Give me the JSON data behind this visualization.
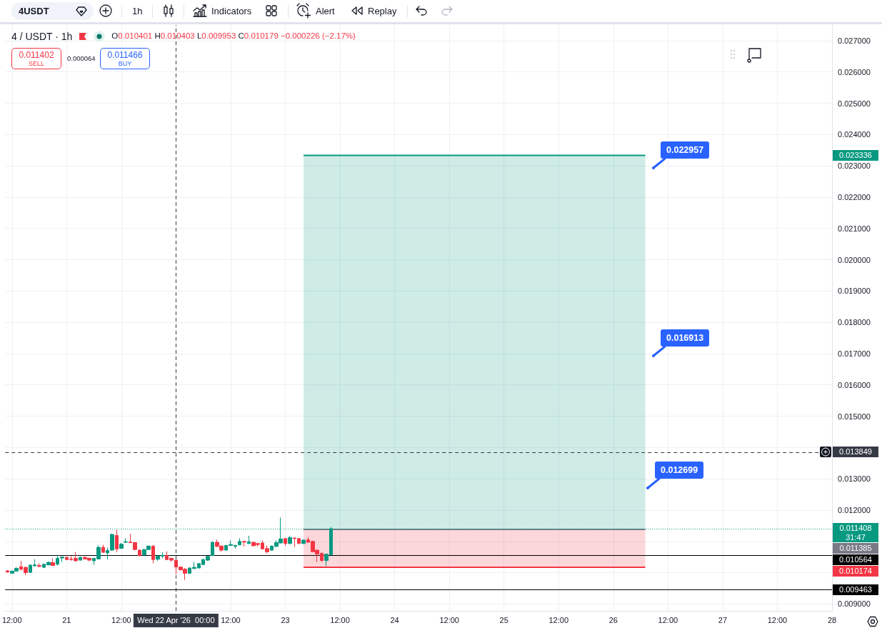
{
  "chart_data": {
    "type": "candlestick",
    "title": "4 / USDT · 1h",
    "annotations": [
      "4USDT",
      "1h",
      "Indicators",
      "Alert",
      "Replay",
      "O0.010401 H0.010403 L0.009953 C0.010179 −0.000226 (−2.17%)",
      "0.011402",
      "SELL",
      "0.000064",
      "0.011466",
      "BUY",
      "0.022957",
      "0.016913",
      "0.012699",
      "31:47",
      "0.023336",
      "0.011385",
      "0.010174"
    ],
    "x": [
      "2026-04-20T11:00",
      "2026-04-20T12:00",
      "2026-04-20T13:00",
      "2026-04-20T14:00",
      "2026-04-20T15:00",
      "2026-04-20T16:00",
      "2026-04-20T17:00",
      "2026-04-20T18:00",
      "2026-04-20T19:00",
      "2026-04-20T20:00",
      "2026-04-20T21:00",
      "2026-04-20T22:00",
      "2026-04-20T23:00",
      "2026-04-21T00:00",
      "2026-04-21T01:00",
      "2026-04-21T02:00",
      "2026-04-21T03:00",
      "2026-04-21T04:00",
      "2026-04-21T05:00",
      "2026-04-21T06:00",
      "2026-04-21T07:00",
      "2026-04-21T08:00",
      "2026-04-21T09:00",
      "2026-04-21T10:00",
      "2026-04-21T11:00",
      "2026-04-21T12:00",
      "2026-04-21T13:00",
      "2026-04-21T14:00",
      "2026-04-21T15:00",
      "2026-04-21T16:00",
      "2026-04-21T17:00",
      "2026-04-21T18:00",
      "2026-04-21T19:00",
      "2026-04-21T20:00",
      "2026-04-21T21:00",
      "2026-04-21T22:00",
      "2026-04-21T23:00",
      "2026-04-22T00:00",
      "2026-04-22T01:00",
      "2026-04-22T02:00",
      "2026-04-22T03:00",
      "2026-04-22T04:00",
      "2026-04-22T05:00",
      "2026-04-22T06:00",
      "2026-04-22T07:00",
      "2026-04-22T08:00",
      "2026-04-22T09:00",
      "2026-04-22T10:00",
      "2026-04-22T11:00",
      "2026-04-22T12:00",
      "2026-04-22T13:00",
      "2026-04-22T14:00",
      "2026-04-22T15:00",
      "2026-04-22T16:00",
      "2026-04-22T17:00",
      "2026-04-22T18:00",
      "2026-04-22T19:00",
      "2026-04-22T20:00",
      "2026-04-22T21:00",
      "2026-04-22T22:00",
      "2026-04-22T23:00",
      "2026-04-23T00:00",
      "2026-04-23T01:00",
      "2026-04-23T02:00",
      "2026-04-23T03:00",
      "2026-04-23T04:00",
      "2026-04-23T05:00",
      "2026-04-23T06:00",
      "2026-04-23T07:00",
      "2026-04-23T08:00",
      "2026-04-23T09:00",
      "2026-04-23T10:00"
    ],
    "ohlc": [
      [
        0.01006,
        0.01008,
        0.01,
        0.01002
      ],
      [
        0.00998,
        0.01007,
        0.00996,
        0.01005
      ],
      [
        0.01005,
        0.01017,
        0.01004,
        0.01014
      ],
      [
        0.01019,
        0.01038,
        0.01007,
        0.01011
      ],
      [
        0.01017,
        0.01019,
        0.00992,
        0.01
      ],
      [
        0.01001,
        0.01027,
        0.01,
        0.01024
      ],
      [
        0.01022,
        0.01043,
        0.01019,
        0.01025
      ],
      [
        0.01023,
        0.0103,
        0.01017,
        0.0102
      ],
      [
        0.01017,
        0.01029,
        0.01015,
        0.01027
      ],
      [
        0.01025,
        0.01036,
        0.01023,
        0.01033
      ],
      [
        0.01032,
        0.01046,
        0.01022,
        0.01023
      ],
      [
        0.01027,
        0.01057,
        0.01023,
        0.01046
      ],
      [
        0.01047,
        0.01052,
        0.01034,
        0.0105
      ],
      [
        0.01049,
        0.01051,
        0.0104,
        0.01042
      ],
      [
        0.01044,
        0.01053,
        0.01038,
        0.01042
      ],
      [
        0.01046,
        0.01066,
        0.01036,
        0.01038
      ],
      [
        0.0104,
        0.01051,
        0.01039,
        0.01049
      ],
      [
        0.01049,
        0.01052,
        0.01042,
        0.01044
      ],
      [
        0.01046,
        0.01048,
        0.01037,
        0.0104
      ],
      [
        0.01038,
        0.01047,
        0.01025,
        0.01046
      ],
      [
        0.01044,
        0.01087,
        0.01042,
        0.01081
      ],
      [
        0.01081,
        0.01089,
        0.01063,
        0.01065
      ],
      [
        0.01063,
        0.0108,
        0.01042,
        0.01071
      ],
      [
        0.01072,
        0.01125,
        0.0107,
        0.01122
      ],
      [
        0.01119,
        0.01137,
        0.01065,
        0.01076
      ],
      [
        0.01078,
        0.01095,
        0.01076,
        0.01091
      ],
      [
        0.01097,
        0.0111,
        0.01095,
        0.01099
      ],
      [
        0.01098,
        0.01124,
        0.01096,
        0.01096
      ],
      [
        0.01096,
        0.01098,
        0.01072,
        0.01074
      ],
      [
        0.01072,
        0.01074,
        0.01051,
        0.01055
      ],
      [
        0.01057,
        0.01076,
        0.01053,
        0.01074
      ],
      [
        0.01074,
        0.01087,
        0.01072,
        0.01085
      ],
      [
        0.01085,
        0.01087,
        0.0103,
        0.01042
      ],
      [
        0.01043,
        0.01055,
        0.01038,
        0.01053
      ],
      [
        0.01053,
        0.01065,
        0.01046,
        0.01055
      ],
      [
        0.01055,
        0.01068,
        0.0104,
        0.01042
      ],
      [
        0.01046,
        0.01048,
        0.01035,
        0.0104
      ],
      [
        0.010401,
        0.010403,
        0.009953,
        0.010179
      ],
      [
        0.01018,
        0.0102,
        0.01007,
        0.01009
      ],
      [
        0.01011,
        0.01015,
        0.00977,
        0.00998
      ],
      [
        0.00998,
        0.01017,
        0.00997,
        0.01015
      ],
      [
        0.01013,
        0.01034,
        0.01012,
        0.01017
      ],
      [
        0.01015,
        0.0103,
        0.01014,
        0.01029
      ],
      [
        0.01026,
        0.01044,
        0.01024,
        0.01042
      ],
      [
        0.0104,
        0.01053,
        0.01038,
        0.01052
      ],
      [
        0.01055,
        0.011,
        0.01053,
        0.01097
      ],
      [
        0.01097,
        0.01106,
        0.01082,
        0.01084
      ],
      [
        0.01085,
        0.01087,
        0.01067,
        0.01072
      ],
      [
        0.01072,
        0.01089,
        0.0107,
        0.01087
      ],
      [
        0.01087,
        0.01103,
        0.01086,
        0.0109
      ],
      [
        0.01084,
        0.01089,
        0.01077,
        0.01087
      ],
      [
        0.01089,
        0.0111,
        0.01087,
        0.011
      ],
      [
        0.011,
        0.01101,
        0.01084,
        0.01098
      ],
      [
        0.01093,
        0.01118,
        0.01092,
        0.01099
      ],
      [
        0.01097,
        0.01099,
        0.01084,
        0.01086
      ],
      [
        0.01093,
        0.01095,
        0.01084,
        0.0109
      ],
      [
        0.01095,
        0.01103,
        0.01074,
        0.01076
      ],
      [
        0.01077,
        0.01087,
        0.01062,
        0.01067
      ],
      [
        0.01072,
        0.01087,
        0.0107,
        0.01085
      ],
      [
        0.01084,
        0.01103,
        0.01082,
        0.01096
      ],
      [
        0.01095,
        0.01176,
        0.01093,
        0.01108
      ],
      [
        0.01109,
        0.0111,
        0.01086,
        0.01093
      ],
      [
        0.01093,
        0.01118,
        0.01091,
        0.01112
      ],
      [
        0.01111,
        0.01112,
        0.01082,
        0.01109
      ],
      [
        0.01109,
        0.0111,
        0.01092,
        0.01093
      ],
      [
        0.01093,
        0.01106,
        0.01092,
        0.01104
      ],
      [
        0.01105,
        0.01114,
        0.01096,
        0.01097
      ],
      [
        0.011,
        0.01102,
        0.01065,
        0.01067
      ],
      [
        0.01072,
        0.01074,
        0.01034,
        0.01059
      ],
      [
        0.01062,
        0.01064,
        0.01034,
        0.01039
      ],
      [
        0.01039,
        0.01061,
        0.01021,
        0.01059
      ],
      [
        0.01057,
        0.01146,
        0.01056,
        0.011408
      ]
    ],
    "series": [
      {
        "type": "line",
        "x": [
          "2026-04-23T04:00",
          "2026-04-26T07:00"
        ],
        "values": [
          0.023336,
          0.023336
        ],
        "lower": [
          0.011385,
          0.011385
        ],
        "upper": [
          0.023336,
          0.023336
        ],
        "color": "#089981"
      },
      {
        "type": "line",
        "x": [
          "2026-04-23T04:00",
          "2026-04-26T07:00"
        ],
        "values": [
          0.011385,
          0.011385
        ],
        "color": "#787b86"
      },
      {
        "type": "line",
        "x": [
          "2026-04-23T04:00",
          "2026-04-26T07:00"
        ],
        "values": [
          0.010174,
          0.010174
        ],
        "lower": [
          0.010174,
          0.010174
        ],
        "upper": [
          0.011385,
          0.011385
        ],
        "color": "#f23645"
      }
    ],
    "xlim": [
      "2026-04-20T10:30",
      "2026-04-28T00:00"
    ],
    "xticks": [
      {
        "value": "2026-04-20T12:00",
        "label": "12:00"
      },
      {
        "value": "2026-04-21T00:00",
        "label": "21"
      },
      {
        "value": "2026-04-21T12:00",
        "label": "12:00"
      },
      {
        "value": "2026-04-22T00:00",
        "label": null
      },
      {
        "value": "2026-04-22T12:00",
        "label": "12:00"
      },
      {
        "value": "2026-04-23T00:00",
        "label": "23"
      },
      {
        "value": "2026-04-23T12:00",
        "label": "12:00"
      },
      {
        "value": "2026-04-24T00:00",
        "label": "24"
      },
      {
        "value": "2026-04-24T12:00",
        "label": "12:00"
      },
      {
        "value": "2026-04-25T00:00",
        "label": "25"
      },
      {
        "value": "2026-04-25T12:00",
        "label": "12:00"
      },
      {
        "value": "2026-04-26T00:00",
        "label": "26"
      },
      {
        "value": "2026-04-26T12:00",
        "label": "12:00"
      },
      {
        "value": "2026-04-27T00:00",
        "label": "27"
      },
      {
        "value": "2026-04-27T12:00",
        "label": "12:00"
      },
      {
        "value": "2026-04-28T00:00",
        "label": "28"
      }
    ],
    "ylim": [
      0.00878,
      0.0275
    ],
    "yticks": [
      {
        "value": 0.009,
        "label": "0.009000"
      },
      {
        "value": 0.01,
        "label": null
      },
      {
        "value": 0.011,
        "label": null
      },
      {
        "value": 0.012,
        "label": "0.012000"
      },
      {
        "value": 0.013,
        "label": "0.013000"
      },
      {
        "value": 0.014,
        "label": null
      },
      {
        "value": 0.015,
        "label": "0.015000"
      },
      {
        "value": 0.016,
        "label": "0.016000"
      },
      {
        "value": 0.017,
        "label": "0.017000"
      },
      {
        "value": 0.018,
        "label": "0.018000"
      },
      {
        "value": 0.019,
        "label": "0.019000"
      },
      {
        "value": 0.02,
        "label": "0.020000"
      },
      {
        "value": 0.021,
        "label": "0.021000"
      },
      {
        "value": 0.022,
        "label": "0.022000"
      },
      {
        "value": 0.023,
        "label": "0.023000"
      },
      {
        "value": 0.024,
        "label": "0.024000"
      },
      {
        "value": 0.025,
        "label": "0.025000"
      },
      {
        "value": 0.026,
        "label": "0.026000"
      },
      {
        "value": 0.027,
        "label": "0.027000"
      }
    ],
    "grid": true,
    "ref_lines": [
      {
        "axis": "x",
        "value": "2026-04-22T00:00",
        "label": "Wed 22 Apr '26  00:00",
        "color": "#363a45",
        "line_style": "dashed"
      },
      {
        "axis": "y",
        "value": 0.013849,
        "label": "0.013849",
        "color": "#363a45",
        "line_style": "dashed"
      },
      {
        "axis": "y",
        "value": 0.011408,
        "label": "0.011408",
        "color": "#089981",
        "line_style": "dotted"
      },
      {
        "axis": "y",
        "value": 0.010564,
        "label": "0.010564",
        "color": "#000000",
        "line_style": "solid"
      },
      {
        "axis": "y",
        "value": 0.009463,
        "label": "0.009463",
        "color": "#000000",
        "line_style": "solid"
      }
    ]
  }
}
